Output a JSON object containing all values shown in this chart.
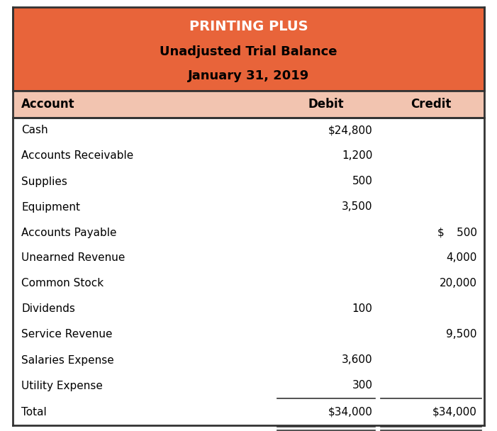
{
  "title_line1": "PRINTING PLUS",
  "title_line2": "Unadjusted Trial Balance",
  "title_line3": "January 31, 2019",
  "header_bg": "#E8643A",
  "col_header_bg": "#F2C4B0",
  "col_headers": [
    "Account",
    "Debit",
    "Credit"
  ],
  "rows": [
    {
      "account": "Cash",
      "debit": "$24,800",
      "credit": ""
    },
    {
      "account": "Accounts Receivable",
      "debit": "1,200",
      "credit": ""
    },
    {
      "account": "Supplies",
      "debit": "500",
      "credit": ""
    },
    {
      "account": "Equipment",
      "debit": "3,500",
      "credit": ""
    },
    {
      "account": "Accounts Payable",
      "debit": "",
      "credit": "$   500"
    },
    {
      "account": "Unearned Revenue",
      "debit": "",
      "credit": "4,000"
    },
    {
      "account": "Common Stock",
      "debit": "",
      "credit": "20,000"
    },
    {
      "account": "Dividends",
      "debit": "100",
      "credit": ""
    },
    {
      "account": "Service Revenue",
      "debit": "",
      "credit": "9,500"
    },
    {
      "account": "Salaries Expense",
      "debit": "3,600",
      "credit": ""
    },
    {
      "account": "Utility Expense",
      "debit": "300",
      "credit": ""
    }
  ],
  "total_row": {
    "account": "Total",
    "debit": "$34,000",
    "credit": "$34,000"
  },
  "bg_color": "#ffffff",
  "border_color": "#333333",
  "text_color": "#000000",
  "title_text_color1": "#ffffff",
  "title_text_color23": "#000000",
  "font_size_title1": 14,
  "font_size_title23": 13,
  "font_size_header": 12,
  "font_size_data": 11,
  "col_split1": 0.555,
  "col_split2": 0.775
}
